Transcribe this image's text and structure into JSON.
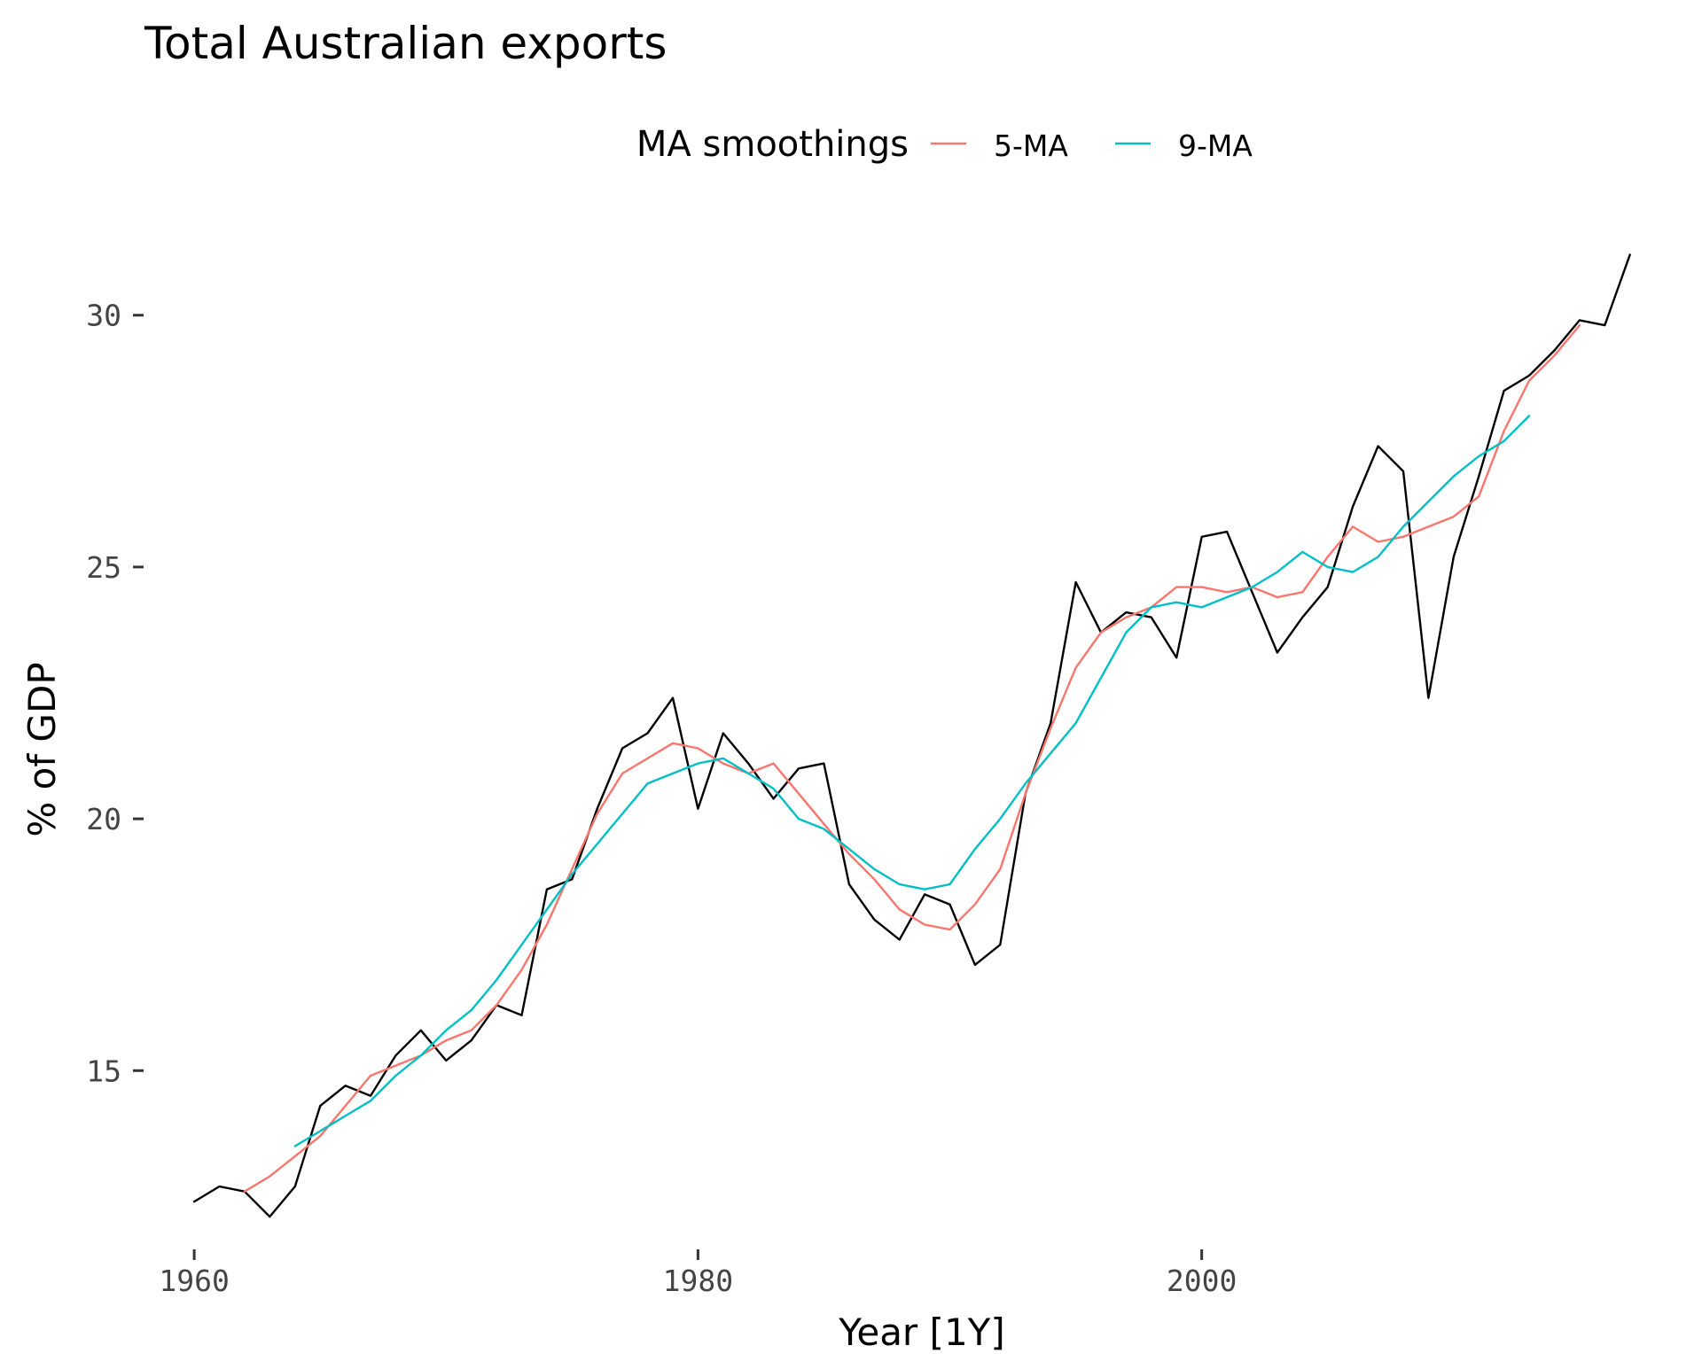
{
  "chart_data": {
    "type": "line",
    "title": "Total Australian exports",
    "xlabel": "Year [1Y]",
    "ylabel": "% of GDP",
    "xlim": [
      1958.8,
      2018.7
    ],
    "ylim": [
      11.75,
      32.3
    ],
    "x_ticks": [
      1960,
      1980,
      2000
    ],
    "x_tick_labels": [
      "1960",
      "1980",
      "2000"
    ],
    "y_ticks": [
      15,
      20,
      25,
      30
    ],
    "y_tick_labels": [
      "15",
      "20",
      "25",
      "30"
    ],
    "grid": false,
    "legend": {
      "title": "MA smoothings",
      "position": "top",
      "entries": [
        {
          "label": "5-MA",
          "color": "#F8766D"
        },
        {
          "label": "9-MA",
          "color": "#00BFC4"
        }
      ]
    },
    "series": [
      {
        "color": "#000000",
        "x": [
          1960,
          1961,
          1962,
          1963,
          1964,
          1965,
          1966,
          1967,
          1968,
          1969,
          1970,
          1971,
          1972,
          1973,
          1974,
          1975,
          1976,
          1977,
          1978,
          1979,
          1980,
          1981,
          1982,
          1983,
          1984,
          1985,
          1986,
          1987,
          1988,
          1989,
          1990,
          1991,
          1992,
          1993,
          1994,
          1995,
          1996,
          1997,
          1998,
          1999,
          2000,
          2001,
          2002,
          2003,
          2004,
          2005,
          2006,
          2007,
          2008,
          2009,
          2010,
          2011,
          2012,
          2013,
          2014,
          2015,
          2016,
          2017
        ],
        "values": [
          12.4,
          12.7,
          12.6,
          12.1,
          12.7,
          14.3,
          14.7,
          14.5,
          15.3,
          15.8,
          15.2,
          15.6,
          16.3,
          16.1,
          18.6,
          18.8,
          20.2,
          21.4,
          21.7,
          22.4,
          20.2,
          21.7,
          21.1,
          20.4,
          21.0,
          21.1,
          18.7,
          18.0,
          17.6,
          18.5,
          18.3,
          17.1,
          17.5,
          20.5,
          21.9,
          24.7,
          23.7,
          24.1,
          24.0,
          23.2,
          25.6,
          25.7,
          24.5,
          23.3,
          24.0,
          24.6,
          26.2,
          27.4,
          26.9,
          22.4,
          25.2,
          26.8,
          28.5,
          28.8,
          29.3,
          29.9,
          29.8,
          31.2
        ]
      },
      {
        "name": "5-MA",
        "color": "#F8766D",
        "x": [
          1962,
          1963,
          1964,
          1965,
          1966,
          1967,
          1968,
          1969,
          1970,
          1971,
          1972,
          1973,
          1974,
          1975,
          1976,
          1977,
          1978,
          1979,
          1980,
          1981,
          1982,
          1983,
          1984,
          1985,
          1986,
          1987,
          1988,
          1989,
          1990,
          1991,
          1992,
          1993,
          1994,
          1995,
          1996,
          1997,
          1998,
          1999,
          2000,
          2001,
          2002,
          2003,
          2004,
          2005,
          2006,
          2007,
          2008,
          2009,
          2010,
          2011,
          2012,
          2013,
          2014,
          2015
        ],
        "values": [
          12.6,
          12.9,
          13.3,
          13.7,
          14.3,
          14.9,
          15.1,
          15.3,
          15.6,
          15.8,
          16.3,
          17.0,
          17.9,
          19.0,
          20.1,
          20.9,
          21.2,
          21.5,
          21.4,
          21.1,
          20.9,
          21.1,
          20.5,
          19.9,
          19.3,
          18.8,
          18.2,
          17.9,
          17.8,
          18.3,
          19.0,
          20.5,
          21.8,
          23.0,
          23.7,
          24.0,
          24.2,
          24.6,
          24.6,
          24.5,
          24.6,
          24.4,
          24.5,
          25.2,
          25.8,
          25.5,
          25.6,
          25.8,
          26.0,
          26.4,
          27.7,
          28.7,
          29.2,
          29.8
        ]
      },
      {
        "name": "9-MA",
        "color": "#00BFC4",
        "x": [
          1964,
          1965,
          1966,
          1967,
          1968,
          1969,
          1970,
          1971,
          1972,
          1973,
          1974,
          1975,
          1976,
          1977,
          1978,
          1979,
          1980,
          1981,
          1982,
          1983,
          1984,
          1985,
          1986,
          1987,
          1988,
          1989,
          1990,
          1991,
          1992,
          1993,
          1994,
          1995,
          1996,
          1997,
          1998,
          1999,
          2000,
          2001,
          2002,
          2003,
          2004,
          2005,
          2006,
          2007,
          2008,
          2009,
          2010,
          2011,
          2012,
          2013
        ],
        "values": [
          13.5,
          13.8,
          14.1,
          14.4,
          14.9,
          15.3,
          15.8,
          16.2,
          16.8,
          17.5,
          18.2,
          18.9,
          19.5,
          20.1,
          20.7,
          20.9,
          21.1,
          21.2,
          20.9,
          20.6,
          20.0,
          19.8,
          19.4,
          19.0,
          18.7,
          18.6,
          18.7,
          19.4,
          20.0,
          20.7,
          21.3,
          21.9,
          22.8,
          23.7,
          24.2,
          24.3,
          24.2,
          24.4,
          24.6,
          24.9,
          25.3,
          25.0,
          24.9,
          25.2,
          25.8,
          26.3,
          26.8,
          27.2,
          27.5,
          28.0
        ]
      }
    ]
  }
}
